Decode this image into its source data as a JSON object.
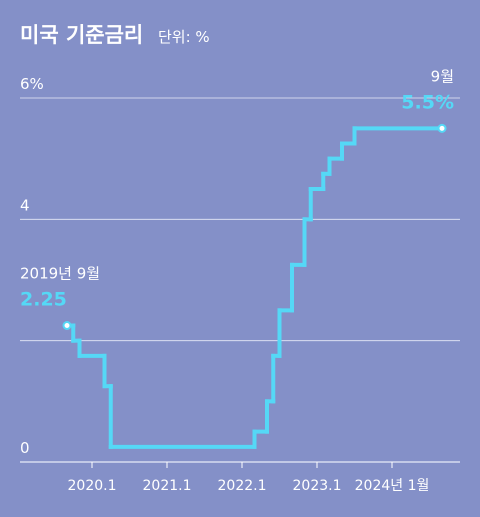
{
  "chart_data": {
    "type": "step-line",
    "title": "미국 기준금리",
    "subtitle": "단위: %",
    "x": [
      "2019-09",
      "2019-10",
      "2019-11",
      "2020-03",
      "2020-04",
      "2022-03",
      "2022-05",
      "2022-06",
      "2022-07",
      "2022-09",
      "2022-11",
      "2022-12",
      "2023-02",
      "2023-03",
      "2023-05",
      "2023-07",
      "2024-09"
    ],
    "series": [
      {
        "name": "기준금리",
        "color": "#55d8f6",
        "values": [
          2.25,
          2.0,
          1.75,
          1.25,
          0.25,
          0.5,
          1.0,
          1.75,
          2.5,
          3.25,
          4.0,
          4.5,
          4.75,
          5.0,
          5.25,
          5.5,
          5.5
        ],
        "value_labels": [
          "2.25",
          null,
          null,
          null,
          null,
          null,
          null,
          null,
          null,
          null,
          null,
          null,
          null,
          null,
          null,
          null,
          "5.5%"
        ],
        "point_labels": [
          "2019년 9월",
          null,
          null,
          null,
          null,
          null,
          null,
          null,
          null,
          null,
          null,
          null,
          null,
          null,
          null,
          null,
          "9월"
        ]
      }
    ],
    "ylim": [
      0,
      6
    ],
    "yticks": [
      0,
      {
        "value": 2,
        "label": null
      },
      4,
      {
        "value": 6,
        "label": "6%"
      }
    ],
    "xticks": [
      {
        "value": "2020-01",
        "label": "2020.1"
      },
      {
        "value": "2021-01",
        "label": "2021.1"
      },
      {
        "value": "2022-01",
        "label": "2022.1"
      },
      {
        "value": "2023-01",
        "label": "2023.1"
      },
      {
        "value": "2024-01",
        "label": "2024년 1월"
      }
    ],
    "grid": true
  }
}
